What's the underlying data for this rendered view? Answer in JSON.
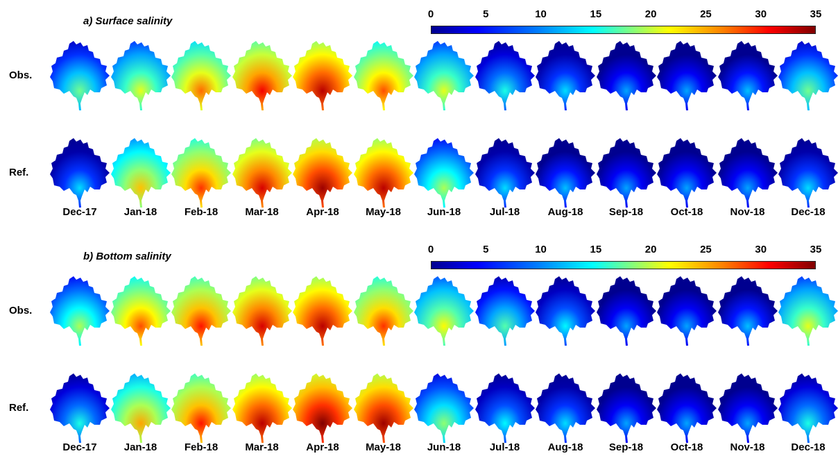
{
  "panels": [
    {
      "title": "a) Surface salinity",
      "rows": [
        {
          "label": "Obs.",
          "values": [
            8,
            12,
            18,
            22,
            24,
            19,
            12,
            5,
            3,
            1,
            1,
            2,
            8
          ]
        },
        {
          "label": "Ref.",
          "values": [
            3,
            15,
            20,
            23,
            25,
            24,
            10,
            3,
            2,
            1,
            1,
            1,
            3
          ]
        }
      ]
    },
    {
      "title": "b) Bottom salinity",
      "rows": [
        {
          "label": "Obs.",
          "values": [
            10,
            19,
            21,
            23,
            24,
            20,
            13,
            7,
            4,
            1,
            1,
            2,
            12
          ]
        },
        {
          "label": "Ref.",
          "values": [
            5,
            16,
            21,
            24,
            26,
            25,
            9,
            4,
            3,
            1,
            1,
            1,
            5
          ]
        }
      ]
    }
  ],
  "months": [
    "Dec-17",
    "Jan-18",
    "Feb-18",
    "Mar-18",
    "Apr-18",
    "May-18",
    "Jun-18",
    "Jul-18",
    "Aug-18",
    "Sep-18",
    "Oct-18",
    "Nov-18",
    "Dec-18"
  ],
  "colorbar": {
    "ticks": [
      "0",
      "5",
      "10",
      "15",
      "20",
      "25",
      "30",
      "35"
    ],
    "min": 0,
    "max": 35,
    "colors": [
      "#00008f",
      "#0000ff",
      "#0080ff",
      "#00ffff",
      "#80ff80",
      "#ffff00",
      "#ff8000",
      "#ff0000",
      "#800000"
    ]
  }
}
